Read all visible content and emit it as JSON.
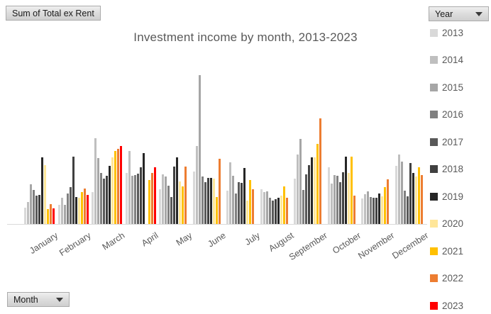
{
  "pivot_buttons": {
    "value_field_label": "Sum of Total ex Rent",
    "year_field_label": "Year",
    "month_field_label": "Month"
  },
  "title": "Investment income by month, 2013-2023",
  "colors": {
    "title_text": "#595959",
    "axis_line": "#d9d9d9",
    "axis_label_text": "#595959",
    "legend_text": "#595959",
    "button_border": "#ababab"
  },
  "chart_data": {
    "type": "bar",
    "subtype": "clustered-column",
    "title": "Investment income by month, 2013-2023",
    "xlabel": "",
    "ylabel": "",
    "y_axis_visible": false,
    "grid": false,
    "legend_position": "right",
    "ylim": [
      0,
      215
    ],
    "units": "relative height (no value axis shown)",
    "categories": [
      "January",
      "February",
      "March",
      "April",
      "May",
      "June",
      "July",
      "August",
      "September",
      "October",
      "November",
      "December"
    ],
    "series": [
      {
        "name": "2013",
        "color": "#d9d9d9",
        "values": [
          23,
          27,
          45,
          72,
          49,
          74,
          47,
          49,
          64,
          80,
          36,
          82
        ]
      },
      {
        "name": "2014",
        "color": "#bfbfbf",
        "values": [
          31,
          37,
          121,
          103,
          70,
          110,
          87,
          45,
          98,
          57,
          42,
          98
        ]
      },
      {
        "name": "2015",
        "color": "#a6a6a6",
        "values": [
          56,
          27,
          93,
          68,
          67,
          210,
          68,
          46,
          120,
          69,
          46,
          88
        ]
      },
      {
        "name": "2016",
        "color": "#808080",
        "values": [
          48,
          43,
          72,
          69,
          54,
          67,
          43,
          37,
          48,
          68,
          38,
          47
        ]
      },
      {
        "name": "2017",
        "color": "#595959",
        "values": [
          40,
          52,
          64,
          71,
          38,
          59,
          59,
          33,
          70,
          59,
          37,
          39
        ]
      },
      {
        "name": "2018",
        "color": "#404040",
        "values": [
          41,
          95,
          68,
          80,
          81,
          65,
          58,
          35,
          83,
          73,
          37,
          86
        ]
      },
      {
        "name": "2019",
        "color": "#262626",
        "values": [
          94,
          38,
          82,
          100,
          94,
          65,
          79,
          37,
          94,
          95,
          43,
          72
        ]
      },
      {
        "name": "2020",
        "color": "#ffe699",
        "values": [
          83,
          37,
          94,
          0,
          60,
          64,
          33,
          40,
          94,
          72,
          39,
          67
        ]
      },
      {
        "name": "2021",
        "color": "#ffc000",
        "values": [
          21,
          45,
          103,
          62,
          53,
          38,
          62,
          53,
          113,
          95,
          52,
          80
        ]
      },
      {
        "name": "2022",
        "color": "#ed7d31",
        "values": [
          28,
          50,
          106,
          72,
          81,
          92,
          49,
          37,
          149,
          40,
          63,
          69
        ]
      },
      {
        "name": "2023",
        "color": "#ff0000",
        "values": [
          22,
          41,
          110,
          80,
          null,
          null,
          null,
          null,
          null,
          null,
          null,
          null
        ]
      }
    ]
  }
}
